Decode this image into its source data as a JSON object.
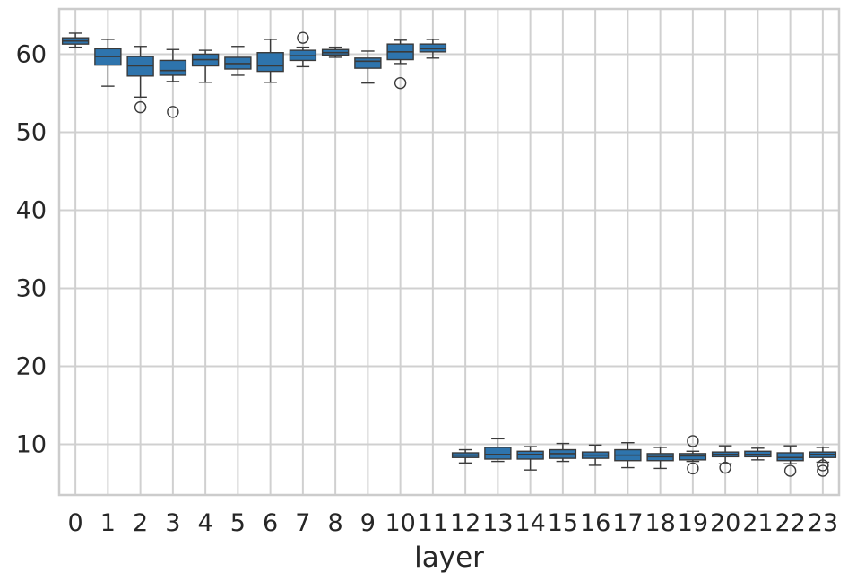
{
  "chart_data": {
    "type": "box",
    "xlabel": "layer",
    "ylabel": "",
    "grid": true,
    "ylim": [
      3.5,
      65.8
    ],
    "yticks": [
      10,
      20,
      30,
      40,
      50,
      60
    ],
    "colors": {
      "box": "#2e74ad",
      "line": "#3a3a3a",
      "grid": "#d0d0d0",
      "frame": "#cccccc"
    },
    "categories": [
      "0",
      "1",
      "2",
      "3",
      "4",
      "5",
      "6",
      "7",
      "8",
      "9",
      "10",
      "11",
      "12",
      "13",
      "14",
      "15",
      "16",
      "17",
      "18",
      "19",
      "20",
      "21",
      "22",
      "23"
    ],
    "boxes": [
      {
        "whislo": 60.9,
        "q1": 61.3,
        "med": 61.7,
        "q3": 62.1,
        "whishi": 62.7,
        "fliers": []
      },
      {
        "whislo": 55.9,
        "q1": 58.6,
        "med": 59.7,
        "q3": 60.7,
        "whishi": 61.9,
        "fliers": []
      },
      {
        "whislo": 54.5,
        "q1": 57.2,
        "med": 58.5,
        "q3": 59.7,
        "whishi": 61.0,
        "fliers": [
          53.2
        ]
      },
      {
        "whislo": 56.5,
        "q1": 57.3,
        "med": 57.9,
        "q3": 59.2,
        "whishi": 60.6,
        "fliers": [
          52.6
        ]
      },
      {
        "whislo": 56.4,
        "q1": 58.5,
        "med": 59.3,
        "q3": 60.0,
        "whishi": 60.5,
        "fliers": []
      },
      {
        "whislo": 57.3,
        "q1": 58.1,
        "med": 58.8,
        "q3": 59.6,
        "whishi": 61.0,
        "fliers": []
      },
      {
        "whislo": 56.4,
        "q1": 57.8,
        "med": 58.5,
        "q3": 60.2,
        "whishi": 61.9,
        "fliers": []
      },
      {
        "whislo": 58.4,
        "q1": 59.2,
        "med": 59.8,
        "q3": 60.5,
        "whishi": 60.9,
        "fliers": [
          62.1
        ]
      },
      {
        "whislo": 59.6,
        "q1": 59.9,
        "med": 60.2,
        "q3": 60.6,
        "whishi": 60.9,
        "fliers": []
      },
      {
        "whislo": 56.3,
        "q1": 58.2,
        "med": 59.1,
        "q3": 59.5,
        "whishi": 60.4,
        "fliers": []
      },
      {
        "whislo": 58.8,
        "q1": 59.3,
        "med": 60.3,
        "q3": 61.3,
        "whishi": 61.8,
        "fliers": [
          56.3
        ]
      },
      {
        "whislo": 59.5,
        "q1": 60.3,
        "med": 60.7,
        "q3": 61.3,
        "whishi": 61.9,
        "fliers": []
      },
      {
        "whislo": 7.6,
        "q1": 8.3,
        "med": 8.6,
        "q3": 8.9,
        "whishi": 9.3,
        "fliers": []
      },
      {
        "whislo": 7.8,
        "q1": 8.1,
        "med": 8.7,
        "q3": 9.6,
        "whishi": 10.7,
        "fliers": []
      },
      {
        "whislo": 6.7,
        "q1": 8.1,
        "med": 8.7,
        "q3": 9.1,
        "whishi": 9.7,
        "fliers": []
      },
      {
        "whislo": 7.8,
        "q1": 8.2,
        "med": 8.8,
        "q3": 9.3,
        "whishi": 10.1,
        "fliers": []
      },
      {
        "whislo": 7.3,
        "q1": 8.2,
        "med": 8.6,
        "q3": 9.0,
        "whishi": 9.9,
        "fliers": []
      },
      {
        "whislo": 7.0,
        "q1": 7.9,
        "med": 8.6,
        "q3": 9.3,
        "whishi": 10.2,
        "fliers": []
      },
      {
        "whislo": 6.9,
        "q1": 7.9,
        "med": 8.4,
        "q3": 8.8,
        "whishi": 9.6,
        "fliers": []
      },
      {
        "whislo": 7.8,
        "q1": 8.0,
        "med": 8.5,
        "q3": 8.8,
        "whishi": 9.1,
        "fliers": [
          10.4,
          6.9
        ]
      },
      {
        "whislo": 7.5,
        "q1": 8.4,
        "med": 8.7,
        "q3": 9.0,
        "whishi": 9.8,
        "fliers": [
          7.0
        ]
      },
      {
        "whislo": 8.0,
        "q1": 8.4,
        "med": 8.7,
        "q3": 9.1,
        "whishi": 9.5,
        "fliers": []
      },
      {
        "whislo": 7.5,
        "q1": 7.9,
        "med": 8.3,
        "q3": 8.9,
        "whishi": 9.8,
        "fliers": [
          6.6
        ]
      },
      {
        "whislo": 7.7,
        "q1": 8.3,
        "med": 8.7,
        "q3": 9.0,
        "whishi": 9.6,
        "fliers": [
          7.3,
          6.6
        ]
      }
    ]
  }
}
